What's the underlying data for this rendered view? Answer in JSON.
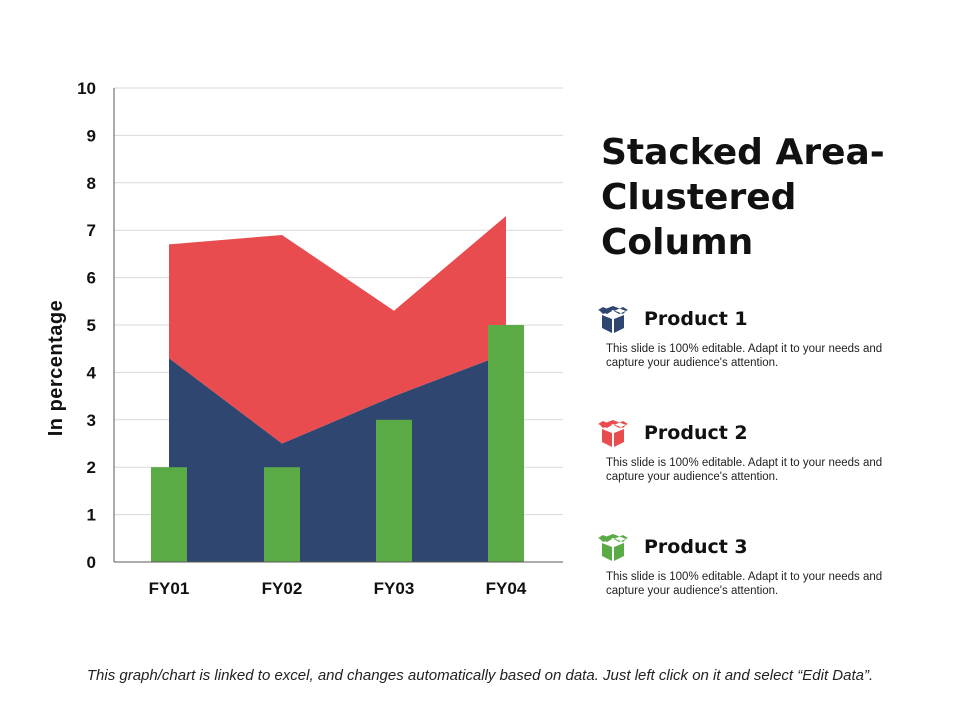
{
  "title": "Stacked Area- Clustered Column",
  "chart_data": {
    "type": "area",
    "categories": [
      "FY01",
      "FY02",
      "FY03",
      "FY04"
    ],
    "ylabel": "In percentage",
    "xlabel": "",
    "ylim": [
      0,
      10
    ],
    "yticks": [
      "0",
      "1",
      "2",
      "3",
      "4",
      "5",
      "6",
      "7",
      "8",
      "9",
      "10"
    ],
    "grid": true,
    "series": [
      {
        "name": "Product 1",
        "kind": "stacked-area",
        "values": [
          4.3,
          2.5,
          3.5,
          4.4
        ]
      },
      {
        "name": "Product 2",
        "kind": "stacked-area",
        "values": [
          2.4,
          4.4,
          1.8,
          2.9
        ]
      },
      {
        "name": "Product 3",
        "kind": "clustered-column",
        "values": [
          2,
          2,
          3,
          5
        ]
      }
    ]
  },
  "legend": [
    {
      "name": "Product 1",
      "description": "This slide is 100% editable. Adapt it to your needs and capture your audience's attention.",
      "color": "#2e4670",
      "icon": "box-icon"
    },
    {
      "name": "Product 2",
      "description": "This slide is 100% editable. Adapt it to your needs and capture your audience's attention.",
      "color": "#e84c4f",
      "icon": "box-icon"
    },
    {
      "name": "Product 3",
      "description": "This slide is 100% editable. Adapt it to your needs and capture your audience's attention.",
      "color": "#5aaa46",
      "icon": "box-icon"
    }
  ],
  "footer": "This graph/chart is linked to excel, and changes automatically based on data. Just left click on it and select “Edit Data”."
}
